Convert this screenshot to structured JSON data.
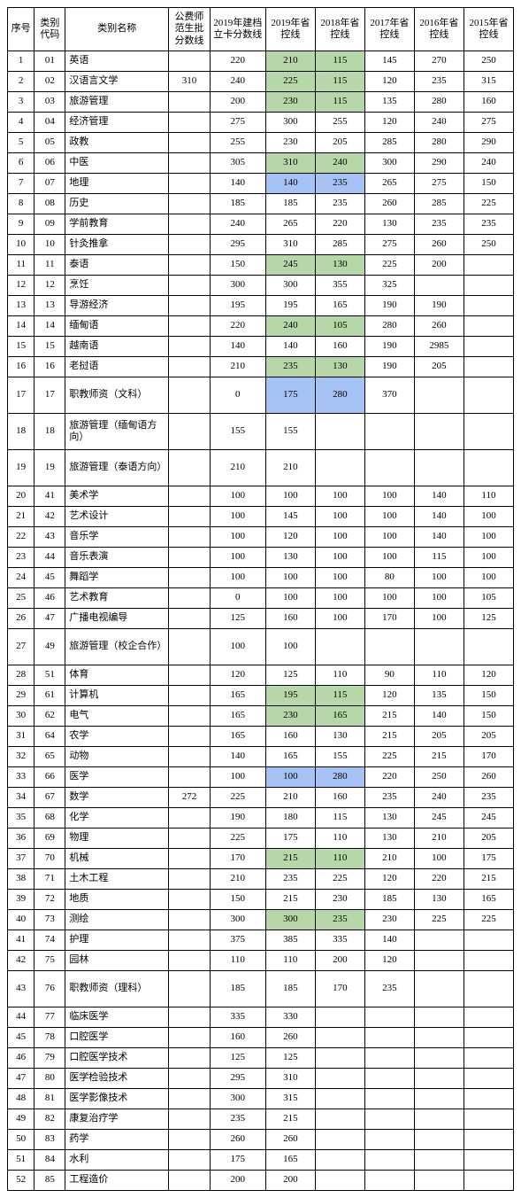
{
  "headers": {
    "seq": "序号",
    "code": "类别代码",
    "name": "类别名称",
    "fee": "公费师范生批分数线",
    "y2019a": "2019年建档立卡分数线",
    "y2019": "2019年省控线",
    "y2018": "2018年省控线",
    "y2017": "2017年省控线",
    "y2016": "2016年省控线",
    "y2015": "2015年省控线"
  },
  "colors": {
    "green": "#b6d7a8",
    "blue": "#a4c2f4"
  },
  "rows": [
    {
      "seq": "1",
      "code": "01",
      "name": "英语",
      "fee": "",
      "y2019a": "220",
      "y2019": "210",
      "y2018": "115",
      "y2017": "145",
      "y2016": "270",
      "y2015": "250",
      "hl2019": "green",
      "hl2018": "green"
    },
    {
      "seq": "2",
      "code": "02",
      "name": "汉语言文学",
      "fee": "310",
      "y2019a": "240",
      "y2019": "225",
      "y2018": "115",
      "y2017": "120",
      "y2016": "235",
      "y2015": "315",
      "hl2019": "green",
      "hl2018": "green"
    },
    {
      "seq": "3",
      "code": "03",
      "name": "旅游管理",
      "fee": "",
      "y2019a": "200",
      "y2019": "230",
      "y2018": "115",
      "y2017": "135",
      "y2016": "280",
      "y2015": "160",
      "hl2019": "green",
      "hl2018": "green"
    },
    {
      "seq": "4",
      "code": "04",
      "name": "经济管理",
      "fee": "",
      "y2019a": "275",
      "y2019": "300",
      "y2018": "255",
      "y2017": "120",
      "y2016": "240",
      "y2015": "275"
    },
    {
      "seq": "5",
      "code": "05",
      "name": "政教",
      "fee": "",
      "y2019a": "255",
      "y2019": "230",
      "y2018": "205",
      "y2017": "285",
      "y2016": "280",
      "y2015": "290"
    },
    {
      "seq": "6",
      "code": "06",
      "name": "中医",
      "fee": "",
      "y2019a": "305",
      "y2019": "310",
      "y2018": "240",
      "y2017": "300",
      "y2016": "290",
      "y2015": "240",
      "hl2019": "green",
      "hl2018": "green"
    },
    {
      "seq": "7",
      "code": "07",
      "name": "地理",
      "fee": "",
      "y2019a": "140",
      "y2019": "140",
      "y2018": "235",
      "y2017": "265",
      "y2016": "275",
      "y2015": "150",
      "hl2019": "blue",
      "hl2018": "blue"
    },
    {
      "seq": "8",
      "code": "08",
      "name": "历史",
      "fee": "",
      "y2019a": "185",
      "y2019": "185",
      "y2018": "235",
      "y2017": "260",
      "y2016": "285",
      "y2015": "225"
    },
    {
      "seq": "9",
      "code": "09",
      "name": "学前教育",
      "fee": "",
      "y2019a": "240",
      "y2019": "265",
      "y2018": "220",
      "y2017": "130",
      "y2016": "235",
      "y2015": "235"
    },
    {
      "seq": "10",
      "code": "10",
      "name": "针灸推拿",
      "fee": "",
      "y2019a": "295",
      "y2019": "310",
      "y2018": "285",
      "y2017": "275",
      "y2016": "260",
      "y2015": "250"
    },
    {
      "seq": "11",
      "code": "11",
      "name": "泰语",
      "fee": "",
      "y2019a": "150",
      "y2019": "245",
      "y2018": "130",
      "y2017": "225",
      "y2016": "200",
      "y2015": "",
      "hl2019": "green",
      "hl2018": "green"
    },
    {
      "seq": "12",
      "code": "12",
      "name": "烹饪",
      "fee": "",
      "y2019a": "300",
      "y2019": "300",
      "y2018": "355",
      "y2017": "325",
      "y2016": "",
      "y2015": ""
    },
    {
      "seq": "13",
      "code": "13",
      "name": "导游经济",
      "fee": "",
      "y2019a": "195",
      "y2019": "195",
      "y2018": "165",
      "y2017": "190",
      "y2016": "190",
      "y2015": ""
    },
    {
      "seq": "14",
      "code": "14",
      "name": "缅甸语",
      "fee": "",
      "y2019a": "220",
      "y2019": "240",
      "y2018": "105",
      "y2017": "280",
      "y2016": "260",
      "y2015": "",
      "hl2019": "green",
      "hl2018": "green"
    },
    {
      "seq": "15",
      "code": "15",
      "name": "越南语",
      "fee": "",
      "y2019a": "140",
      "y2019": "140",
      "y2018": "160",
      "y2017": "190",
      "y2016": "2985",
      "y2015": ""
    },
    {
      "seq": "16",
      "code": "16",
      "name": "老挝语",
      "fee": "",
      "y2019a": "210",
      "y2019": "235",
      "y2018": "130",
      "y2017": "190",
      "y2016": "205",
      "y2015": "",
      "hl2019": "green",
      "hl2018": "green"
    },
    {
      "seq": "17",
      "code": "17",
      "name": "职教师资（文科）",
      "fee": "",
      "y2019a": "0",
      "y2019": "175",
      "y2018": "280",
      "y2017": "370",
      "y2016": "",
      "y2015": "",
      "tall": true,
      "hl2019": "blue",
      "hl2018": "blue"
    },
    {
      "seq": "18",
      "code": "18",
      "name": "旅游管理（缅甸语方向）",
      "fee": "",
      "y2019a": "155",
      "y2019": "155",
      "y2018": "",
      "y2017": "",
      "y2016": "",
      "y2015": "",
      "tall": true
    },
    {
      "seq": "19",
      "code": "19",
      "name": "旅游管理（泰语方向）",
      "fee": "",
      "y2019a": "210",
      "y2019": "210",
      "y2018": "",
      "y2017": "",
      "y2016": "",
      "y2015": "",
      "tall": true
    },
    {
      "seq": "20",
      "code": "41",
      "name": "美术学",
      "fee": "",
      "y2019a": "100",
      "y2019": "100",
      "y2018": "100",
      "y2017": "100",
      "y2016": "140",
      "y2015": "110"
    },
    {
      "seq": "21",
      "code": "42",
      "name": "艺术设计",
      "fee": "",
      "y2019a": "100",
      "y2019": "145",
      "y2018": "100",
      "y2017": "100",
      "y2016": "140",
      "y2015": "100"
    },
    {
      "seq": "22",
      "code": "43",
      "name": "音乐学",
      "fee": "",
      "y2019a": "100",
      "y2019": "120",
      "y2018": "100",
      "y2017": "100",
      "y2016": "140",
      "y2015": "100"
    },
    {
      "seq": "23",
      "code": "44",
      "name": "音乐表演",
      "fee": "",
      "y2019a": "100",
      "y2019": "130",
      "y2018": "100",
      "y2017": "100",
      "y2016": "115",
      "y2015": "100"
    },
    {
      "seq": "24",
      "code": "45",
      "name": "舞蹈学",
      "fee": "",
      "y2019a": "100",
      "y2019": "100",
      "y2018": "100",
      "y2017": "80",
      "y2016": "100",
      "y2015": "100"
    },
    {
      "seq": "25",
      "code": "46",
      "name": "艺术教育",
      "fee": "",
      "y2019a": "0",
      "y2019": "100",
      "y2018": "100",
      "y2017": "100",
      "y2016": "100",
      "y2015": "105"
    },
    {
      "seq": "26",
      "code": "47",
      "name": "广播电视编导",
      "fee": "",
      "y2019a": "125",
      "y2019": "160",
      "y2018": "100",
      "y2017": "170",
      "y2016": "100",
      "y2015": "125"
    },
    {
      "seq": "27",
      "code": "49",
      "name": "旅游管理（校企合作）",
      "fee": "",
      "y2019a": "100",
      "y2019": "100",
      "y2018": "",
      "y2017": "",
      "y2016": "",
      "y2015": "",
      "tall": true
    },
    {
      "seq": "28",
      "code": "51",
      "name": "体育",
      "fee": "",
      "y2019a": "120",
      "y2019": "125",
      "y2018": "110",
      "y2017": "90",
      "y2016": "110",
      "y2015": "120"
    },
    {
      "seq": "29",
      "code": "61",
      "name": "计算机",
      "fee": "",
      "y2019a": "165",
      "y2019": "195",
      "y2018": "115",
      "y2017": "120",
      "y2016": "135",
      "y2015": "150",
      "hl2019": "green",
      "hl2018": "green"
    },
    {
      "seq": "30",
      "code": "62",
      "name": "电气",
      "fee": "",
      "y2019a": "165",
      "y2019": "230",
      "y2018": "165",
      "y2017": "215",
      "y2016": "140",
      "y2015": "150",
      "hl2019": "green",
      "hl2018": "green"
    },
    {
      "seq": "31",
      "code": "64",
      "name": "农学",
      "fee": "",
      "y2019a": "165",
      "y2019": "160",
      "y2018": "130",
      "y2017": "215",
      "y2016": "205",
      "y2015": "205"
    },
    {
      "seq": "32",
      "code": "65",
      "name": "动物",
      "fee": "",
      "y2019a": "140",
      "y2019": "165",
      "y2018": "155",
      "y2017": "225",
      "y2016": "215",
      "y2015": "170"
    },
    {
      "seq": "33",
      "code": "66",
      "name": "医学",
      "fee": "",
      "y2019a": "100",
      "y2019": "100",
      "y2018": "280",
      "y2017": "220",
      "y2016": "250",
      "y2015": "260",
      "hl2019": "blue",
      "hl2018": "blue"
    },
    {
      "seq": "34",
      "code": "67",
      "name": "数学",
      "fee": "272",
      "y2019a": "225",
      "y2019": "210",
      "y2018": "160",
      "y2017": "235",
      "y2016": "240",
      "y2015": "235"
    },
    {
      "seq": "35",
      "code": "68",
      "name": "化学",
      "fee": "",
      "y2019a": "190",
      "y2019": "180",
      "y2018": "115",
      "y2017": "130",
      "y2016": "245",
      "y2015": "245"
    },
    {
      "seq": "36",
      "code": "69",
      "name": "物理",
      "fee": "",
      "y2019a": "225",
      "y2019": "175",
      "y2018": "110",
      "y2017": "130",
      "y2016": "210",
      "y2015": "205"
    },
    {
      "seq": "37",
      "code": "70",
      "name": "机械",
      "fee": "",
      "y2019a": "170",
      "y2019": "215",
      "y2018": "110",
      "y2017": "210",
      "y2016": "100",
      "y2015": "175",
      "hl2019": "green",
      "hl2018": "green"
    },
    {
      "seq": "38",
      "code": "71",
      "name": "土木工程",
      "fee": "",
      "y2019a": "210",
      "y2019": "235",
      "y2018": "225",
      "y2017": "120",
      "y2016": "220",
      "y2015": "215"
    },
    {
      "seq": "39",
      "code": "72",
      "name": "地质",
      "fee": "",
      "y2019a": "150",
      "y2019": "215",
      "y2018": "230",
      "y2017": "185",
      "y2016": "130",
      "y2015": "165"
    },
    {
      "seq": "40",
      "code": "73",
      "name": "测绘",
      "fee": "",
      "y2019a": "300",
      "y2019": "300",
      "y2018": "235",
      "y2017": "230",
      "y2016": "225",
      "y2015": "225",
      "hl2019": "green",
      "hl2018": "green"
    },
    {
      "seq": "41",
      "code": "74",
      "name": "护理",
      "fee": "",
      "y2019a": "375",
      "y2019": "385",
      "y2018": "335",
      "y2017": "140",
      "y2016": "",
      "y2015": ""
    },
    {
      "seq": "42",
      "code": "75",
      "name": "园林",
      "fee": "",
      "y2019a": "110",
      "y2019": "110",
      "y2018": "200",
      "y2017": "120",
      "y2016": "",
      "y2015": ""
    },
    {
      "seq": "43",
      "code": "76",
      "name": "职教师资（理科）",
      "fee": "",
      "y2019a": "185",
      "y2019": "185",
      "y2018": "170",
      "y2017": "235",
      "y2016": "",
      "y2015": "",
      "tall": true
    },
    {
      "seq": "44",
      "code": "77",
      "name": "临床医学",
      "fee": "",
      "y2019a": "335",
      "y2019": "330",
      "y2018": "",
      "y2017": "",
      "y2016": "",
      "y2015": ""
    },
    {
      "seq": "45",
      "code": "78",
      "name": "口腔医学",
      "fee": "",
      "y2019a": "160",
      "y2019": "260",
      "y2018": "",
      "y2017": "",
      "y2016": "",
      "y2015": ""
    },
    {
      "seq": "46",
      "code": "79",
      "name": "口腔医学技术",
      "fee": "",
      "y2019a": "125",
      "y2019": "125",
      "y2018": "",
      "y2017": "",
      "y2016": "",
      "y2015": ""
    },
    {
      "seq": "47",
      "code": "80",
      "name": "医学检验技术",
      "fee": "",
      "y2019a": "295",
      "y2019": "310",
      "y2018": "",
      "y2017": "",
      "y2016": "",
      "y2015": ""
    },
    {
      "seq": "48",
      "code": "81",
      "name": "医学影像技术",
      "fee": "",
      "y2019a": "300",
      "y2019": "315",
      "y2018": "",
      "y2017": "",
      "y2016": "",
      "y2015": ""
    },
    {
      "seq": "49",
      "code": "82",
      "name": "康复治疗学",
      "fee": "",
      "y2019a": "235",
      "y2019": "215",
      "y2018": "",
      "y2017": "",
      "y2016": "",
      "y2015": ""
    },
    {
      "seq": "50",
      "code": "83",
      "name": "药学",
      "fee": "",
      "y2019a": "260",
      "y2019": "260",
      "y2018": "",
      "y2017": "",
      "y2016": "",
      "y2015": ""
    },
    {
      "seq": "51",
      "code": "84",
      "name": "水利",
      "fee": "",
      "y2019a": "175",
      "y2019": "165",
      "y2018": "",
      "y2017": "",
      "y2016": "",
      "y2015": ""
    },
    {
      "seq": "52",
      "code": "85",
      "name": "工程造价",
      "fee": "",
      "y2019a": "200",
      "y2019": "200",
      "y2018": "",
      "y2017": "",
      "y2016": "",
      "y2015": ""
    }
  ]
}
